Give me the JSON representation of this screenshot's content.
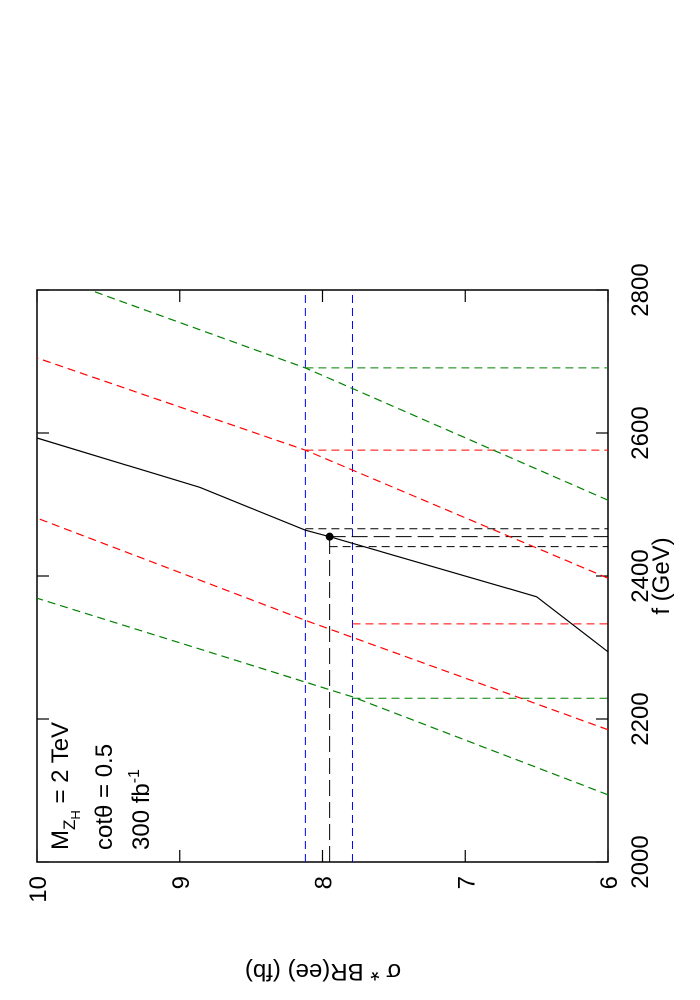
{
  "chart_data": {
    "type": "line",
    "xlabel": "f  (GeV)",
    "ylabel": "σ * BR(ee)  (fb)",
    "xlim": [
      2000,
      2800
    ],
    "ylim": [
      6,
      10
    ],
    "xticks": [
      2000,
      2200,
      2400,
      2600,
      2800
    ],
    "yticks": [
      6,
      7,
      8,
      9,
      10
    ],
    "annotation_mass": {
      "main": "M",
      "sub": "Z",
      "subsub": "H",
      "rest": " = 2 TeV"
    },
    "annotation_cot": "cotθ = 0.5",
    "annotation_lumi": {
      "main": "300 fb",
      "sup": "-1"
    },
    "series": [
      {
        "color": "#000000",
        "dash": "none",
        "x": [
          2294,
          2371,
          2455,
          2464,
          2524,
          2593
        ],
        "values": [
          6,
          6.5,
          7.95,
          8.12,
          8.86,
          10
        ]
      },
      {
        "color": "#ff0000",
        "dash": "8,5",
        "x": [
          2185,
          2338,
          2481
        ],
        "values": [
          6,
          8.12,
          10
        ]
      },
      {
        "color": "#ff0000",
        "dash": "8,5",
        "x": [
          2397,
          2576,
          2705
        ],
        "values": [
          6,
          8.12,
          10
        ]
      },
      {
        "color": "#008000",
        "dash": "8,5",
        "x": [
          2094,
          2231,
          2369
        ],
        "values": [
          6,
          7.79,
          10
        ]
      },
      {
        "color": "#008000",
        "dash": "8,5",
        "x": [
          2506,
          2691,
          2800
        ],
        "values": [
          6,
          8.12,
          9.63
        ]
      }
    ],
    "bands": [
      {
        "value": 8.12,
        "color": "#0000ff"
      },
      {
        "value": 7.79,
        "color": "#0000ff"
      }
    ],
    "drop_lines": [
      {
        "x": 2466,
        "from": 8.12,
        "color": "#000000",
        "dash": "8,5"
      },
      {
        "x": 2455,
        "from": 7.95,
        "color": "#000000",
        "dash": "16,6"
      },
      {
        "x": 2441,
        "from": 7.95,
        "color": "#000000",
        "dash": "8,5"
      },
      {
        "x": 2576,
        "from": 8.12,
        "color": "#ff0000",
        "dash": "8,5"
      },
      {
        "x": 2333,
        "from": 7.79,
        "color": "#ff0000",
        "dash": "8,5"
      },
      {
        "x": 2691,
        "from": 8.12,
        "color": "#008000",
        "dash": "8,5"
      },
      {
        "x": 2229,
        "from": 7.79,
        "color": "#008000",
        "dash": "8,5"
      }
    ],
    "point": {
      "x": 2455,
      "y": 7.95,
      "color": "#000000"
    }
  }
}
